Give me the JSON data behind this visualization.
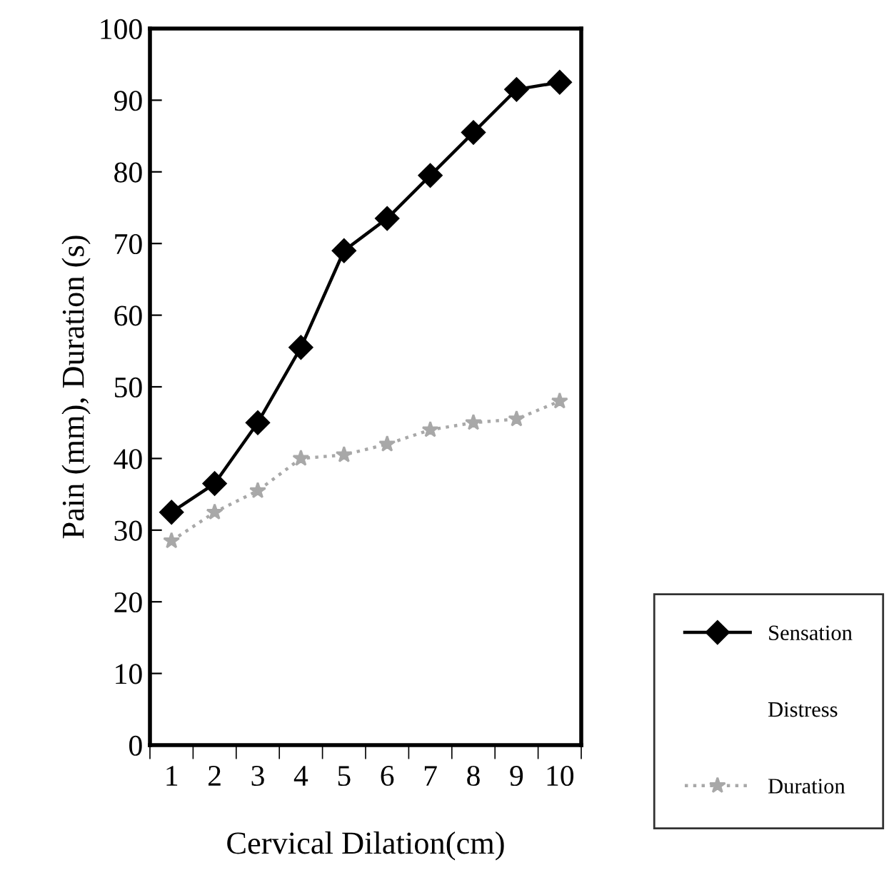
{
  "chart_data": {
    "type": "line",
    "xlabel": "Cervical Dilation(cm)",
    "ylabel": "Pain (mm), Duration (s)",
    "categories": [
      "1",
      "2",
      "3",
      "4",
      "5",
      "6",
      "7",
      "8",
      "9",
      "10"
    ],
    "ylim": [
      0,
      100
    ],
    "yticks": [
      0,
      10,
      20,
      30,
      40,
      50,
      60,
      70,
      80,
      90,
      100
    ],
    "grid": false,
    "legend": "bottom right",
    "series": [
      {
        "name": "Sensation",
        "color": "#000000",
        "marker": "diamond",
        "line_style": "solid",
        "values": [
          32.5,
          36.5,
          45,
          55.5,
          69,
          73.5,
          79.5,
          85.5,
          91.5,
          92.5
        ]
      },
      {
        "name": "Distress",
        "values": [
          null,
          null,
          null,
          null,
          null,
          null,
          null,
          null,
          null,
          null
        ]
      },
      {
        "name": "Duration",
        "color": "#a8a8a8",
        "marker": "star",
        "line_style": "dotted",
        "values": [
          28.5,
          32.5,
          35.5,
          40,
          40.5,
          42,
          44,
          45,
          45.5,
          48
        ]
      }
    ]
  }
}
